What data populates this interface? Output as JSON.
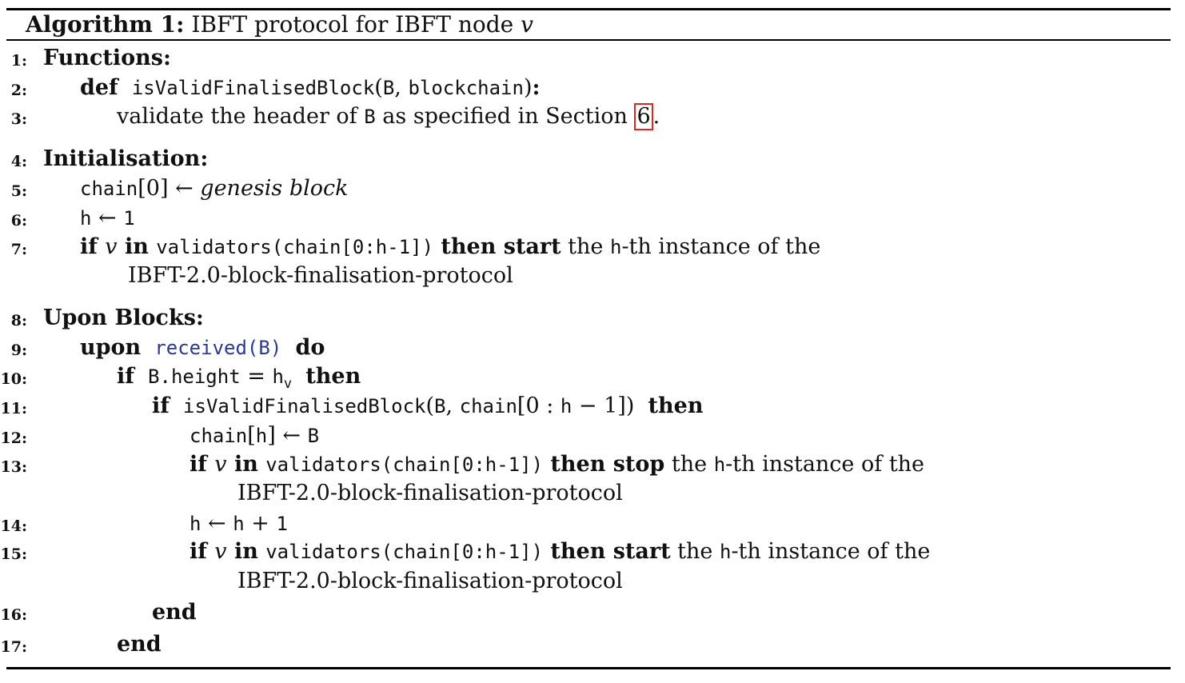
{
  "algorithm": {
    "label": "Algorithm 1:",
    "title_text": "IBFT protocol for IBFT node",
    "node_var": "v"
  },
  "lines": [
    {
      "num": "1:",
      "segments": [
        {
          "t": "Functions:",
          "s": "b"
        }
      ]
    },
    {
      "num": "2:",
      "segments": [
        {
          "t": "def",
          "s": "b"
        },
        {
          "t": "  ",
          "s": ""
        },
        {
          "t": "isValidFinalisedBlock",
          "s": "tt"
        },
        {
          "t": "(",
          "s": ""
        },
        {
          "t": "B",
          "s": "tt"
        },
        {
          "t": ", ",
          "s": ""
        },
        {
          "t": "blockchain",
          "s": "tt"
        },
        {
          "t": ")",
          "s": ""
        },
        {
          "t": ":",
          "s": "b"
        }
      ]
    },
    {
      "num": "3:",
      "segments": [
        {
          "t": "validate the header of ",
          "s": ""
        },
        {
          "t": "B",
          "s": "tt"
        },
        {
          "t": " as specified in Section ",
          "s": ""
        },
        {
          "t": "6",
          "s": "ref"
        },
        {
          "t": ".",
          "s": ""
        }
      ]
    },
    {
      "num": "4:",
      "segments": [
        {
          "t": "Initialisation:",
          "s": "b"
        }
      ]
    },
    {
      "num": "5:",
      "segments": [
        {
          "t": "chain",
          "s": "tt"
        },
        {
          "t": "[0] ← ",
          "s": ""
        },
        {
          "t": "genesis block",
          "s": "i"
        }
      ]
    },
    {
      "num": "6:",
      "segments": [
        {
          "t": "h",
          "s": "tt"
        },
        {
          "t": " ← ",
          "s": ""
        },
        {
          "t": "1",
          "s": "tt"
        }
      ]
    },
    {
      "num": "7:",
      "segments": [
        {
          "t": "if ",
          "s": "b"
        },
        {
          "t": "v",
          "s": "i"
        },
        {
          "t": " in ",
          "s": "b"
        },
        {
          "t": "validators(chain[0:h-1])",
          "s": "tt"
        },
        {
          "t": " then start",
          "s": "b"
        },
        {
          "t": " the ",
          "s": ""
        },
        {
          "t": "h",
          "s": "tt"
        },
        {
          "t": "-th instance of the",
          "s": ""
        }
      ]
    },
    {
      "num": "",
      "segments": [
        {
          "t": "IBFT-2.0-block-finalisation-protocol",
          "s": ""
        }
      ]
    },
    {
      "num": "8:",
      "segments": [
        {
          "t": "Upon Blocks:",
          "s": "b"
        }
      ]
    },
    {
      "num": "9:",
      "segments": [
        {
          "t": "upon",
          "s": "b"
        },
        {
          "t": "  ",
          "s": ""
        },
        {
          "t": "received(B)",
          "s": "tt-blue"
        },
        {
          "t": "  ",
          "s": ""
        },
        {
          "t": "do",
          "s": "b"
        }
      ]
    },
    {
      "num": "10:",
      "segments": [
        {
          "t": "if",
          "s": "b"
        },
        {
          "t": "  ",
          "s": ""
        },
        {
          "t": "B.height",
          "s": "tt"
        },
        {
          "t": " = ",
          "s": ""
        },
        {
          "t": "h",
          "s": "tt"
        },
        {
          "t": "v",
          "s": "sub"
        },
        {
          "t": "  ",
          "s": ""
        },
        {
          "t": "then",
          "s": "b"
        }
      ]
    },
    {
      "num": "11:",
      "segments": [
        {
          "t": "if",
          "s": "b"
        },
        {
          "t": "  ",
          "s": ""
        },
        {
          "t": "isValidFinalisedBlock",
          "s": "tt"
        },
        {
          "t": "(",
          "s": ""
        },
        {
          "t": "B",
          "s": "tt"
        },
        {
          "t": ", ",
          "s": ""
        },
        {
          "t": "chain",
          "s": "tt"
        },
        {
          "t": "[0 : ",
          "s": ""
        },
        {
          "t": "h",
          "s": "tt"
        },
        {
          "t": " − 1])  ",
          "s": ""
        },
        {
          "t": "then",
          "s": "b"
        }
      ]
    },
    {
      "num": "12:",
      "segments": [
        {
          "t": "chain",
          "s": "tt"
        },
        {
          "t": "[",
          "s": ""
        },
        {
          "t": "h",
          "s": "tt"
        },
        {
          "t": "] ← ",
          "s": ""
        },
        {
          "t": "B",
          "s": "tt"
        }
      ]
    },
    {
      "num": "13:",
      "segments": [
        {
          "t": "if ",
          "s": "b"
        },
        {
          "t": "v",
          "s": "i"
        },
        {
          "t": " in ",
          "s": "b"
        },
        {
          "t": "validators(chain[0:h-1])",
          "s": "tt"
        },
        {
          "t": " then stop",
          "s": "b"
        },
        {
          "t": " the ",
          "s": ""
        },
        {
          "t": "h",
          "s": "tt"
        },
        {
          "t": "-th instance of the",
          "s": ""
        }
      ]
    },
    {
      "num": "",
      "segments": [
        {
          "t": "IBFT-2.0-block-finalisation-protocol",
          "s": ""
        }
      ]
    },
    {
      "num": "14:",
      "segments": [
        {
          "t": "h",
          "s": "tt"
        },
        {
          "t": " ← ",
          "s": ""
        },
        {
          "t": "h",
          "s": "tt"
        },
        {
          "t": " + ",
          "s": ""
        },
        {
          "t": "1",
          "s": "tt"
        }
      ]
    },
    {
      "num": "15:",
      "segments": [
        {
          "t": "if ",
          "s": "b"
        },
        {
          "t": "v",
          "s": "i"
        },
        {
          "t": " in ",
          "s": "b"
        },
        {
          "t": "validators(chain[0:h-1])",
          "s": "tt"
        },
        {
          "t": " then start",
          "s": "b"
        },
        {
          "t": " the ",
          "s": ""
        },
        {
          "t": "h",
          "s": "tt"
        },
        {
          "t": "-th instance of the",
          "s": ""
        }
      ]
    },
    {
      "num": "",
      "segments": [
        {
          "t": "IBFT-2.0-block-finalisation-protocol",
          "s": ""
        }
      ]
    },
    {
      "num": "16:",
      "segments": [
        {
          "t": "end",
          "s": "b"
        }
      ]
    },
    {
      "num": "17:",
      "segments": [
        {
          "t": "end",
          "s": "b"
        }
      ]
    }
  ]
}
